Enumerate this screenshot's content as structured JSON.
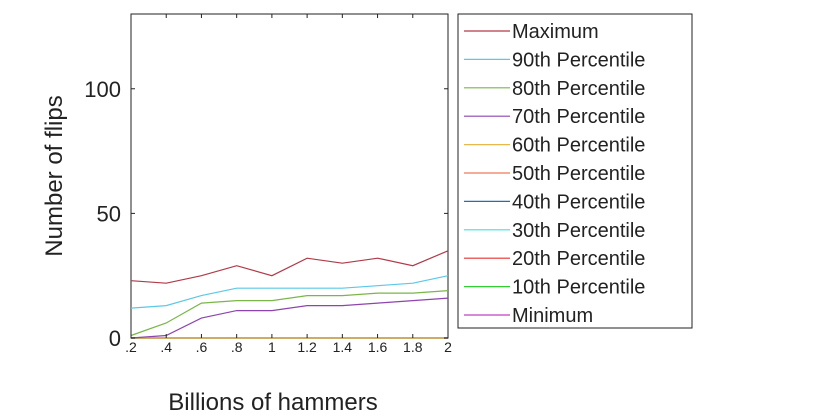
{
  "chart_data": {
    "type": "line",
    "title": "",
    "xlabel": "Billions of hammers",
    "ylabel": "Number of flips",
    "x": [
      0.2,
      0.4,
      0.6,
      0.8,
      1.0,
      1.2,
      1.4,
      1.6,
      1.8,
      2.0
    ],
    "x_tick_labels": [
      ".2",
      ".4",
      ".6",
      ".8",
      "1",
      "1.2",
      "1.4",
      "1.6",
      "1.8",
      "2"
    ],
    "xlim": [
      0.2,
      2.0
    ],
    "ylim": [
      0,
      130
    ],
    "y_ticks": [
      0,
      50,
      100
    ],
    "y_tick_labels": [
      "0",
      "50",
      "100"
    ],
    "grid": false,
    "legend_position": "right-outside",
    "series": [
      {
        "name": "Maximum",
        "color": "#b03a48",
        "values": [
          23,
          22,
          25,
          29,
          25,
          32,
          30,
          32,
          29,
          35
        ]
      },
      {
        "name": "90th Percentile",
        "color": "#5bc8e8",
        "values": [
          12,
          13,
          17,
          20,
          20,
          20,
          20,
          21,
          22,
          25
        ]
      },
      {
        "name": "80th Percentile",
        "color": "#7ab648",
        "values": [
          1,
          6,
          14,
          15,
          15,
          17,
          17,
          18,
          18,
          19
        ]
      },
      {
        "name": "70th Percentile",
        "color": "#8e44ad",
        "values": [
          0,
          1,
          8,
          11,
          11,
          13,
          13,
          14,
          15,
          16
        ]
      },
      {
        "name": "60th Percentile",
        "color": "#e8b84a",
        "values": [
          0,
          0,
          0,
          0,
          0,
          0,
          0,
          0,
          0,
          0
        ]
      },
      {
        "name": "50th Percentile",
        "color": "#f0785a",
        "values": [
          0,
          0,
          0,
          0,
          0,
          0,
          0,
          0,
          0,
          0
        ]
      },
      {
        "name": "40th Percentile",
        "color": "#1f6fb4",
        "values": [
          0,
          0,
          0,
          0,
          0,
          0,
          0,
          0,
          0,
          0
        ]
      },
      {
        "name": "30th Percentile",
        "color": "#3ee0e0",
        "values": [
          0,
          0,
          0,
          0,
          0,
          0,
          0,
          0,
          0,
          0
        ]
      },
      {
        "name": "20th Percentile",
        "color": "#e83030",
        "values": [
          0,
          0,
          0,
          0,
          0,
          0,
          0,
          0,
          0,
          0
        ]
      },
      {
        "name": "10th Percentile",
        "color": "#33cc33",
        "values": [
          0,
          0,
          0,
          0,
          0,
          0,
          0,
          0,
          0,
          0
        ]
      },
      {
        "name": "Minimum",
        "color": "#c040c0",
        "values": [
          0,
          0,
          0,
          0,
          0,
          0,
          0,
          0,
          0,
          0
        ]
      }
    ]
  }
}
